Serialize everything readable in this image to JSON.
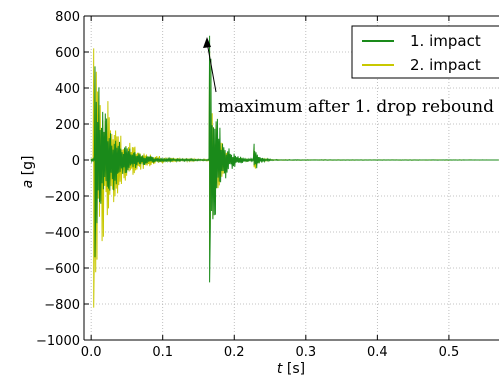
{
  "chart_data": {
    "type": "line",
    "xlabel_var": "t",
    "xlabel_unit": "[s]",
    "ylabel_var": "a",
    "ylabel_unit": "[g]",
    "xlim": [
      -0.01,
      0.57
    ],
    "ylim": [
      -1000,
      800
    ],
    "xticks": [
      0.0,
      0.1,
      0.2,
      0.3,
      0.4,
      0.5
    ],
    "xtick_labels": [
      "0.0",
      "0.1",
      "0.2",
      "0.3",
      "0.4",
      "0.5"
    ],
    "yticks": [
      -1000,
      -800,
      -600,
      -400,
      -200,
      0,
      200,
      400,
      600,
      800
    ],
    "ytick_labels": [
      "−1000",
      "−800",
      "−600",
      "−400",
      "−200",
      "0",
      "200",
      "400",
      "600",
      "800"
    ],
    "grid": true,
    "legend_position": "top-right",
    "series": [
      {
        "name": "1. impact",
        "color": "#1a8a1a",
        "peaks": [
          {
            "t": 0.005,
            "max": 520,
            "min": -540,
            "decay": 0.022
          },
          {
            "t": 0.165,
            "max": 690,
            "min": -680,
            "decay": 0.012
          },
          {
            "t": 0.227,
            "max": 90,
            "min": -30,
            "decay": 0.006
          }
        ]
      },
      {
        "name": "2. impact",
        "color": "#c8c800",
        "peaks": [
          {
            "t": 0.003,
            "max": 620,
            "min": -820,
            "decay": 0.024
          },
          {
            "t": 0.165,
            "max": 600,
            "min": -500,
            "decay": 0.01
          },
          {
            "t": 0.227,
            "max": 70,
            "min": -40,
            "decay": 0.006
          }
        ]
      }
    ],
    "annotations": [
      {
        "text": "maximum after 1. drop rebound",
        "point_t": 0.165,
        "point_a": 690
      }
    ]
  }
}
